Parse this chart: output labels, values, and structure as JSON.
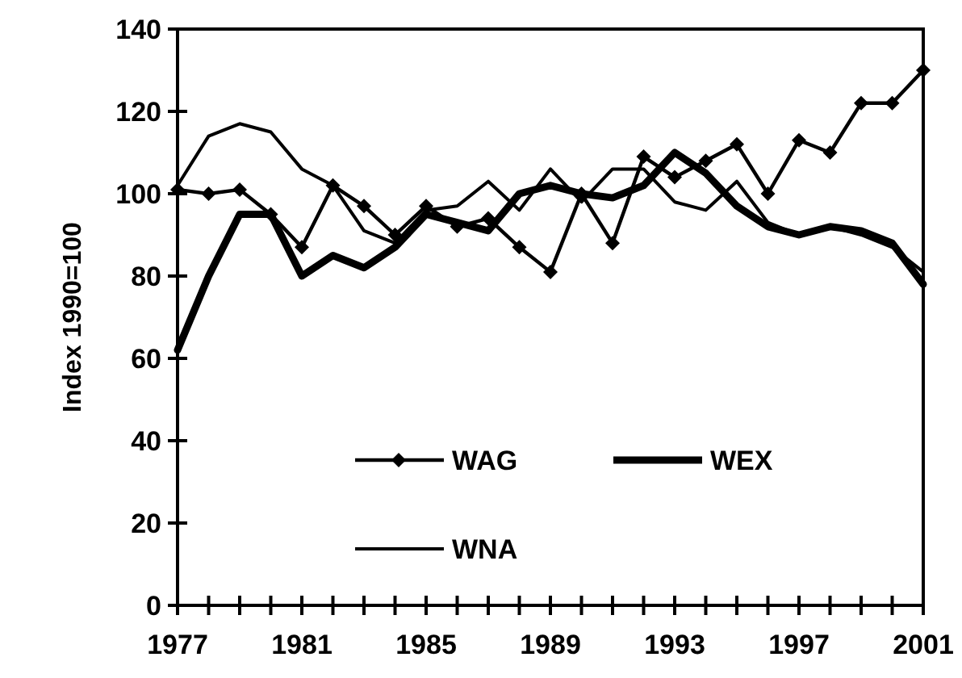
{
  "chart_data": {
    "type": "line",
    "ylabel": "Index 1990=100",
    "x": [
      1977,
      1978,
      1979,
      1980,
      1981,
      1982,
      1983,
      1984,
      1985,
      1986,
      1987,
      1988,
      1989,
      1990,
      1991,
      1992,
      1993,
      1994,
      1995,
      1996,
      1997,
      1998,
      1999,
      2000,
      2001
    ],
    "series": [
      {
        "name": "WAG",
        "color": "#000000",
        "marker": "diamond",
        "values": [
          101,
          100,
          101,
          95,
          87,
          102,
          97,
          90,
          97,
          92,
          94,
          87,
          81,
          100,
          88,
          109,
          104,
          108,
          112,
          100,
          113,
          110,
          122,
          122,
          130
        ]
      },
      {
        "name": "WEX",
        "color": "#000000",
        "marker": "none",
        "values": [
          62,
          80,
          95,
          95,
          80,
          85,
          82,
          87,
          95,
          93,
          91,
          100,
          102,
          100,
          99,
          102,
          110,
          105,
          97,
          92,
          90,
          92,
          91,
          88,
          78
        ]
      },
      {
        "name": "WNA",
        "color": "#000000",
        "marker": "none",
        "values": [
          102,
          114,
          117,
          115,
          106,
          102,
          91,
          88,
          96,
          97,
          103,
          96,
          106,
          98,
          106,
          106,
          98,
          96,
          103,
          93,
          90,
          92,
          90,
          87,
          81
        ]
      }
    ],
    "xlim": [
      1977,
      2001
    ],
    "xticks": [
      1977,
      {
        "value": 1978,
        "label": null
      },
      {
        "value": 1979,
        "label": null
      },
      {
        "value": 1980,
        "label": null
      },
      1981,
      {
        "value": 1982,
        "label": null
      },
      {
        "value": 1983,
        "label": null
      },
      {
        "value": 1984,
        "label": null
      },
      1985,
      {
        "value": 1986,
        "label": null
      },
      {
        "value": 1987,
        "label": null
      },
      {
        "value": 1988,
        "label": null
      },
      1989,
      {
        "value": 1990,
        "label": null
      },
      {
        "value": 1991,
        "label": null
      },
      {
        "value": 1992,
        "label": null
      },
      1993,
      {
        "value": 1994,
        "label": null
      },
      {
        "value": 1995,
        "label": null
      },
      {
        "value": 1996,
        "label": null
      },
      1997,
      {
        "value": 1998,
        "label": null
      },
      {
        "value": 1999,
        "label": null
      },
      {
        "value": 2000,
        "label": null
      },
      2001
    ],
    "ylim": [
      0,
      140
    ],
    "yticks": [
      0,
      20,
      40,
      60,
      80,
      100,
      120,
      140
    ],
    "grid": false,
    "legend": "bottom",
    "line_style": "solid"
  }
}
